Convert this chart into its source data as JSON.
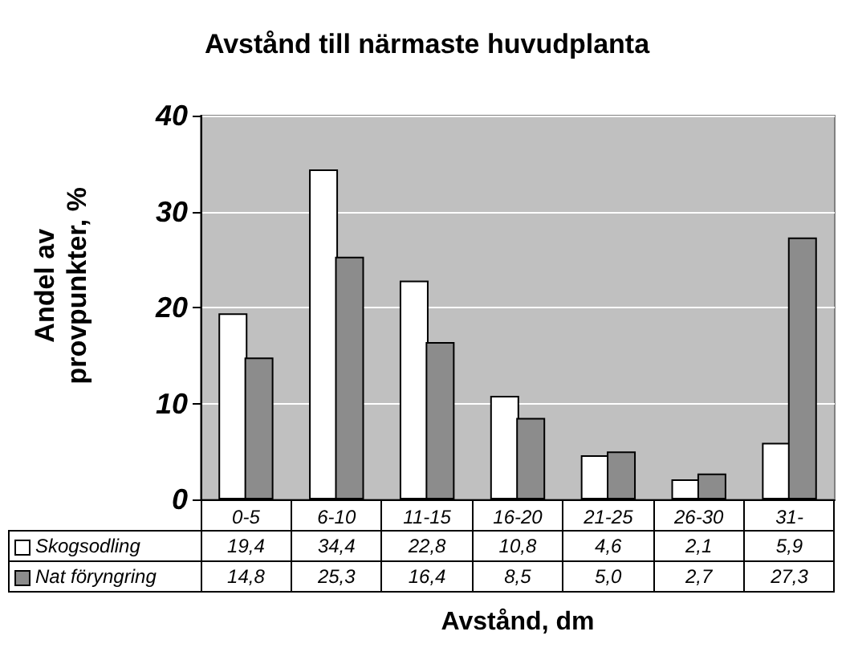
{
  "chart_data": {
    "type": "bar",
    "title": "Avstånd till närmaste huvudplanta",
    "xlabel": "Avstånd, dm",
    "ylabel": "Andel av\nprovpunkter, %",
    "categories": [
      "0-5",
      "6-10",
      "11-15",
      "16-20",
      "21-25",
      "26-30",
      "31-"
    ],
    "series": [
      {
        "name": "Skogsodling",
        "color": "#ffffff",
        "values": [
          19.4,
          34.4,
          22.8,
          10.8,
          4.6,
          2.1,
          5.9
        ],
        "value_labels": [
          "19,4",
          "34,4",
          "22,8",
          "10,8",
          "4,6",
          "2,1",
          "5,9"
        ]
      },
      {
        "name": "Nat föryngring",
        "color": "#8c8c8c",
        "values": [
          14.8,
          25.3,
          16.4,
          8.5,
          5.0,
          2.7,
          27.3
        ],
        "value_labels": [
          "14,8",
          "25,3",
          "16,4",
          "8,5",
          "5,0",
          "2,7",
          "27,3"
        ]
      }
    ],
    "ylim": [
      0,
      40
    ],
    "yticks": [
      0,
      10,
      20,
      30,
      40
    ],
    "grid": "y",
    "legend": "bottom left"
  }
}
